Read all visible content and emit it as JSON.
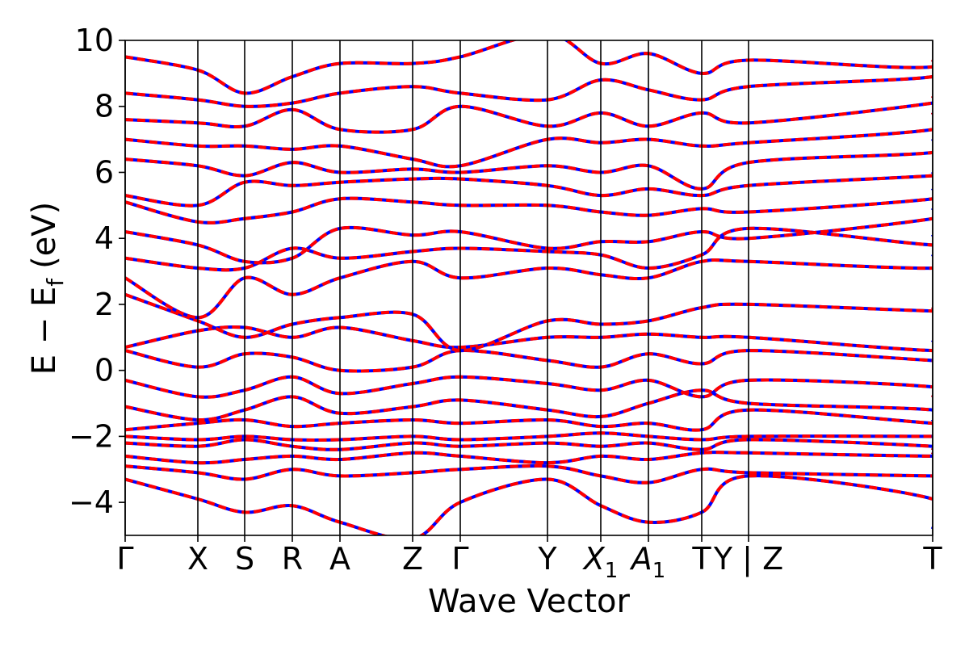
{
  "chart_data": {
    "type": "line",
    "xlabel": "Wave Vector",
    "ylabel_main": "E − E",
    "ylabel_sub": "f",
    "ylabel_unit": "(eV)",
    "ylim": [
      -5,
      10
    ],
    "yticks": [
      -4,
      -2,
      0,
      2,
      4,
      6,
      8,
      10
    ],
    "ytick_labels": [
      "−4",
      "−2",
      "0",
      "2",
      "4",
      "6",
      "8",
      "10"
    ],
    "xlim": [
      0,
      10
    ],
    "kpoints": [
      {
        "label": "Γ",
        "sub": "",
        "x": 0.0
      },
      {
        "label": "X",
        "sub": "",
        "x": 0.9
      },
      {
        "label": "S",
        "sub": "",
        "x": 1.48
      },
      {
        "label": "R",
        "sub": "",
        "x": 2.07
      },
      {
        "label": "A",
        "sub": "",
        "x": 2.66
      },
      {
        "label": "Z",
        "sub": "",
        "x": 3.56
      },
      {
        "label": "Γ",
        "sub": "",
        "x": 4.15
      },
      {
        "label": "Y",
        "sub": "",
        "x": 5.23
      },
      {
        "label": "X",
        "sub": "1",
        "x": 5.89
      },
      {
        "label": "A",
        "sub": "1",
        "x": 6.48
      },
      {
        "label": "T",
        "sub": "",
        "x": 7.14
      },
      {
        "label": "Y | Z",
        "sub": "",
        "x": 7.72
      },
      {
        "label": "T",
        "sub": "",
        "x": 10.0
      }
    ],
    "series_colors": {
      "line_a": "#ff0000",
      "line_b": "#0000ff"
    },
    "series_style": "red solid lines overlaid with blue dashed lines (two identical band structures)",
    "bands": [
      {
        "y": [
          -3.3,
          -3.9,
          -4.3,
          -4.1,
          -4.6,
          -5.1,
          -4.0,
          -3.3,
          -4.1,
          -4.6,
          -4.3,
          -3.2,
          -3.9,
          -4.8
        ]
      },
      {
        "y": [
          -2.9,
          -3.1,
          -3.3,
          -3.0,
          -3.2,
          -3.1,
          -3.0,
          -2.9,
          -3.2,
          -3.4,
          -3.0,
          -3.1,
          -3.2,
          -3.2
        ]
      },
      {
        "y": [
          -2.6,
          -2.8,
          -2.7,
          -2.6,
          -2.7,
          -2.5,
          -2.6,
          -2.8,
          -2.6,
          -2.7,
          -2.5,
          -2.5,
          -2.6,
          -2.5
        ]
      },
      {
        "y": [
          -2.2,
          -2.3,
          -2.1,
          -2.3,
          -2.4,
          -2.2,
          -2.3,
          -2.2,
          -2.3,
          -2.2,
          -2.4,
          -2.1,
          -2.3,
          -2.4
        ]
      },
      {
        "y": [
          -2.0,
          -2.1,
          -2.0,
          -2.1,
          -2.1,
          -2.0,
          -2.1,
          -2.0,
          -1.9,
          -2.0,
          -2.1,
          -2.0,
          -2.0,
          -2.0
        ]
      },
      {
        "y": [
          -1.8,
          -1.6,
          -1.5,
          -1.7,
          -1.6,
          -1.5,
          -1.6,
          -1.5,
          -1.7,
          -1.6,
          -1.8,
          -1.2,
          -1.6,
          -1.5
        ]
      },
      {
        "y": [
          -1.1,
          -1.5,
          -1.2,
          -0.8,
          -1.3,
          -1.1,
          -0.9,
          -1.2,
          -1.4,
          -1.0,
          -0.6,
          -1.0,
          -1.2,
          -1.6
        ]
      },
      {
        "y": [
          -0.3,
          -0.8,
          -0.6,
          -0.2,
          -0.7,
          -0.4,
          -0.2,
          -0.4,
          -0.6,
          -0.3,
          -0.8,
          -0.3,
          -0.5,
          -0.8
        ]
      },
      {
        "y": [
          0.6,
          0.1,
          0.5,
          0.4,
          0.0,
          0.1,
          0.6,
          0.3,
          0.1,
          0.5,
          0.2,
          0.6,
          0.3,
          0.3
        ]
      },
      {
        "y": [
          0.7,
          1.2,
          1.3,
          1.0,
          1.3,
          0.9,
          0.7,
          1.0,
          1.0,
          1.1,
          1.0,
          1.0,
          0.6,
          0.9
        ]
      },
      {
        "y": [
          2.3,
          1.5,
          1.0,
          1.4,
          1.6,
          1.7,
          0.6,
          1.5,
          1.4,
          1.5,
          1.9,
          2.0,
          1.8,
          1.9
        ]
      },
      {
        "y": [
          2.8,
          1.6,
          2.8,
          2.3,
          2.8,
          3.3,
          2.8,
          3.1,
          2.9,
          2.8,
          3.3,
          3.3,
          3.1,
          3.5
        ]
      },
      {
        "y": [
          3.4,
          3.1,
          3.1,
          3.7,
          3.4,
          3.6,
          3.7,
          3.6,
          3.5,
          3.1,
          3.5,
          4.3,
          3.8,
          4.1
        ]
      },
      {
        "y": [
          4.2,
          3.8,
          3.3,
          3.4,
          4.3,
          4.1,
          4.2,
          3.7,
          3.9,
          3.9,
          4.2,
          4.0,
          4.6,
          4.9
        ]
      },
      {
        "y": [
          5.1,
          4.5,
          4.6,
          4.8,
          5.2,
          5.1,
          5.0,
          5.0,
          4.8,
          4.7,
          4.9,
          4.8,
          5.2,
          5.5
        ]
      },
      {
        "y": [
          5.3,
          5.0,
          5.7,
          5.6,
          5.7,
          5.8,
          5.8,
          5.6,
          5.3,
          5.5,
          5.3,
          5.6,
          5.9,
          6.0
        ]
      },
      {
        "y": [
          6.4,
          6.2,
          5.9,
          6.3,
          6.0,
          6.1,
          6.0,
          6.2,
          6.0,
          6.2,
          5.5,
          6.3,
          6.6,
          7.0
        ]
      },
      {
        "y": [
          7.0,
          6.8,
          6.8,
          6.7,
          6.8,
          6.4,
          6.2,
          7.0,
          6.9,
          7.0,
          6.8,
          6.9,
          7.3,
          7.8
        ]
      },
      {
        "y": [
          7.6,
          7.5,
          7.4,
          7.9,
          7.3,
          7.3,
          8.0,
          7.4,
          7.8,
          7.4,
          7.8,
          7.5,
          8.1,
          8.3
        ]
      },
      {
        "y": [
          8.4,
          8.2,
          8.0,
          8.1,
          8.4,
          8.6,
          8.4,
          8.2,
          8.8,
          8.5,
          8.2,
          8.6,
          8.9,
          9.4
        ]
      },
      {
        "y": [
          9.5,
          9.1,
          8.4,
          8.9,
          9.3,
          9.3,
          9.5,
          10.2,
          9.3,
          9.6,
          9.0,
          9.4,
          9.2,
          10.1
        ]
      }
    ]
  }
}
